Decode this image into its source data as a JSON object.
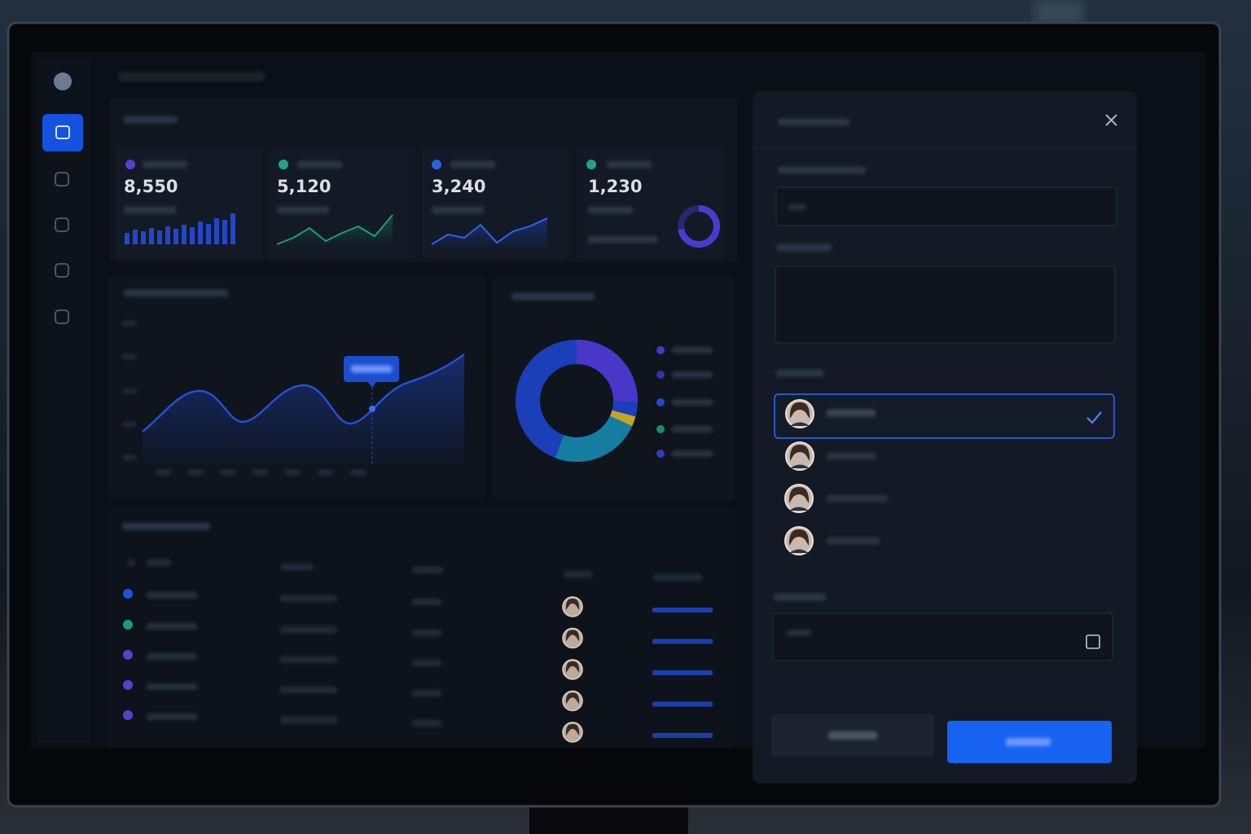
{
  "stats": [
    {
      "value": "8,550"
    },
    {
      "value": "5,120"
    },
    {
      "value": "3,240"
    },
    {
      "value": "1,230"
    }
  ]
}
